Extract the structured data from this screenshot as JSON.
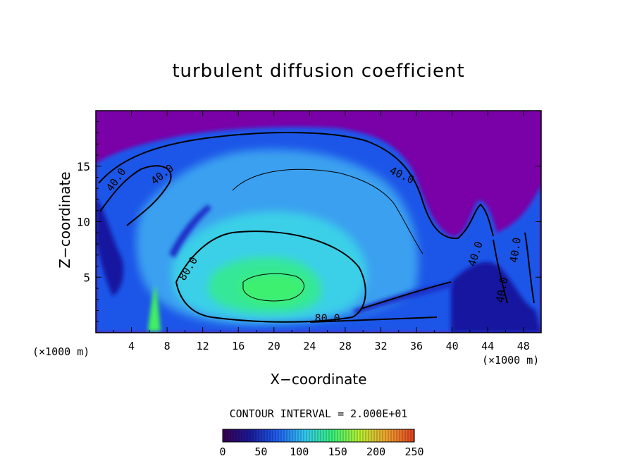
{
  "chart_data": {
    "type": "heatmap",
    "title": "turbulent diffusion coefficient",
    "xlabel": "X−coordinate",
    "ylabel": "Z−coordinate",
    "x_unit": "(×1000 m)",
    "xlim": [
      0,
      50
    ],
    "ylim": [
      0,
      20
    ],
    "x_ticks": [
      "4",
      "8",
      "12",
      "16",
      "20",
      "24",
      "28",
      "32",
      "36",
      "40",
      "44",
      "48"
    ],
    "y_ticks": [
      "5",
      "10",
      "15"
    ],
    "contour_interval_text": "CONTOUR INTERVAL = 2.000E+01",
    "contour_labels": [
      {
        "text": "40.0",
        "x": 2.6,
        "z": 13.6,
        "angle": -55
      },
      {
        "text": "40.0",
        "x": 7.7,
        "z": 14.0,
        "angle": -38
      },
      {
        "text": "40.0",
        "x": 34.2,
        "z": 13.9,
        "angle": 25
      },
      {
        "text": "40.0",
        "x": 43.0,
        "z": 7.0,
        "angle": -72
      },
      {
        "text": "40.0",
        "x": 47.5,
        "z": 7.4,
        "angle": -82
      },
      {
        "text": "40.0",
        "x": 46.0,
        "z": 3.8,
        "angle": -80
      },
      {
        "text": "80.0",
        "x": 10.7,
        "z": 5.6,
        "angle": -58
      },
      {
        "text": "80.0",
        "x": 26.0,
        "z": 1.0,
        "angle": 0
      }
    ],
    "colorbar": {
      "min": 0,
      "max": 250,
      "tick_labels": [
        "0",
        "50",
        "100",
        "150",
        "200",
        "250"
      ],
      "colors": [
        "#3a0050",
        "#1a1a9a",
        "#1e5ff0",
        "#33c8f0",
        "#36f07a",
        "#b8f030",
        "#f0a030",
        "#e04020"
      ]
    }
  }
}
